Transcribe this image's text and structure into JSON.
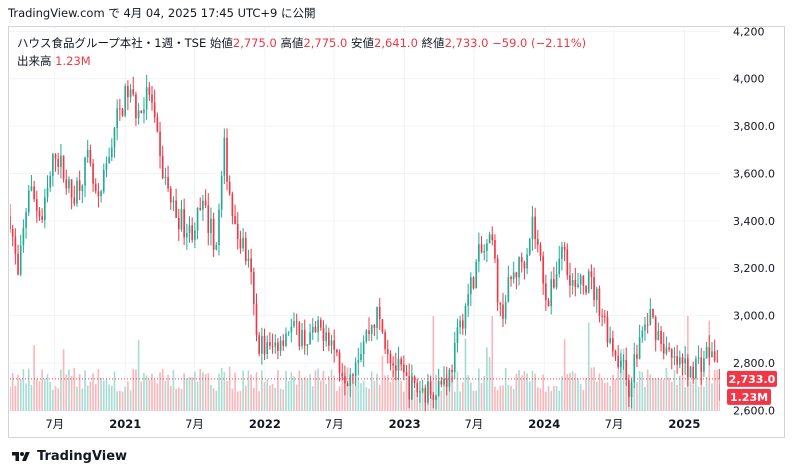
{
  "attribution": "TradingView.com で 4月 04, 2025 17:45 UTC+9 に公開",
  "legend": {
    "title": "ハウス食品グループ本社・1週・TSE",
    "open_label": "始値",
    "open": "2,775.0",
    "high_label": "高値",
    "high": "2,775.0",
    "low_label": "安値",
    "low": "2,641.0",
    "close_label": "終値",
    "close": "2,733.0",
    "change": "−59.0 (−2.11%)",
    "volume_label": "出来高",
    "volume": "1.23M"
  },
  "badges": {
    "price": "2,733.0",
    "volume": "1.23M"
  },
  "footer": {
    "brand": "TradingView",
    "logo_icon": "tradingview-logo-icon"
  },
  "colors": {
    "up": "#22ab94",
    "down": "#f23645",
    "up_volume": "#a8ddd4",
    "down_volume": "#f9b7bc",
    "grid": "#f0f3fa"
  },
  "chart_data": {
    "type": "candlestick",
    "interval": "1 week",
    "y_ticks": [
      2600,
      2800,
      3000,
      3200,
      3400,
      3600,
      3800,
      4000,
      4200
    ],
    "y_tick_labels": [
      "2,600.0",
      "2,800.0",
      "3,000.0",
      "3,200.0",
      "3,400.0",
      "3,600.0",
      "3,800.0",
      "4,000",
      "4,200"
    ],
    "ylim": [
      2500,
      4210
    ],
    "x_ticks": [
      "2020-07-01",
      "2021-01-01",
      "2021-07-01",
      "2022-01-01",
      "2022-07-01",
      "2023-01-01",
      "2023-07-01",
      "2024-01-01",
      "2024-07-01",
      "2025-01-01"
    ],
    "x_tick_labels": [
      "7月",
      "2021",
      "7月",
      "2022",
      "7月",
      "2023",
      "7月",
      "2024",
      "7月",
      "2025"
    ],
    "date_range": [
      "2020-03-06",
      "2025-04-04"
    ],
    "close_path": [
      [
        "2020-03-06",
        3420
      ],
      [
        "2020-03-27",
        3150
      ],
      [
        "2020-04-24",
        3550
      ],
      [
        "2020-05-29",
        3400
      ],
      [
        "2020-07-03",
        3700
      ],
      [
        "2020-08-14",
        3500
      ],
      [
        "2020-09-25",
        3650
      ],
      [
        "2020-10-23",
        3450
      ],
      [
        "2020-12-04",
        3800
      ],
      [
        "2021-01-08",
        3950
      ],
      [
        "2021-02-05",
        3850
      ],
      [
        "2021-03-05",
        3950
      ],
      [
        "2021-04-02",
        3650
      ],
      [
        "2021-05-07",
        3450
      ],
      [
        "2021-06-18",
        3350
      ],
      [
        "2021-07-23",
        3450
      ],
      [
        "2021-08-27",
        3300
      ],
      [
        "2021-09-17",
        3700
      ],
      [
        "2021-10-15",
        3350
      ],
      [
        "2021-11-05",
        3300
      ],
      [
        "2021-11-26",
        3150
      ],
      [
        "2021-12-10",
        2900
      ],
      [
        "2022-01-14",
        2850
      ],
      [
        "2022-03-04",
        2950
      ],
      [
        "2022-04-22",
        2900
      ],
      [
        "2022-06-10",
        2950
      ],
      [
        "2022-07-15",
        2800
      ],
      [
        "2022-08-05",
        2750
      ],
      [
        "2022-09-16",
        2900
      ],
      [
        "2022-10-21",
        3000
      ],
      [
        "2022-12-02",
        2800
      ],
      [
        "2023-01-13",
        2700
      ],
      [
        "2023-03-03",
        2680
      ],
      [
        "2023-04-28",
        2750
      ],
      [
        "2023-06-02",
        3000
      ],
      [
        "2023-07-14",
        3250
      ],
      [
        "2023-08-18",
        3300
      ],
      [
        "2023-09-08",
        3000
      ],
      [
        "2023-10-06",
        3150
      ],
      [
        "2023-11-10",
        3250
      ],
      [
        "2023-12-01",
        3400
      ],
      [
        "2024-01-12",
        3050
      ],
      [
        "2024-02-16",
        3300
      ],
      [
        "2024-03-22",
        3100
      ],
      [
        "2024-04-26",
        3150
      ],
      [
        "2024-05-24",
        3050
      ],
      [
        "2024-06-21",
        2900
      ],
      [
        "2024-07-19",
        2800
      ],
      [
        "2024-08-09",
        2700
      ],
      [
        "2024-09-06",
        2900
      ],
      [
        "2024-10-04",
        3000
      ],
      [
        "2024-11-01",
        2900
      ],
      [
        "2024-11-29",
        2800
      ],
      [
        "2025-01-10",
        2780
      ],
      [
        "2025-02-07",
        2800
      ],
      [
        "2025-03-07",
        2850
      ],
      [
        "2025-03-28",
        2792
      ],
      [
        "2025-04-04",
        2733
      ]
    ],
    "last_bar": {
      "date": "2025-04-04",
      "open": 2775.0,
      "high": 2775.0,
      "low": 2641.0,
      "close": 2733.0,
      "volume": "1.23M"
    },
    "last_price_line": 2733.0
  }
}
